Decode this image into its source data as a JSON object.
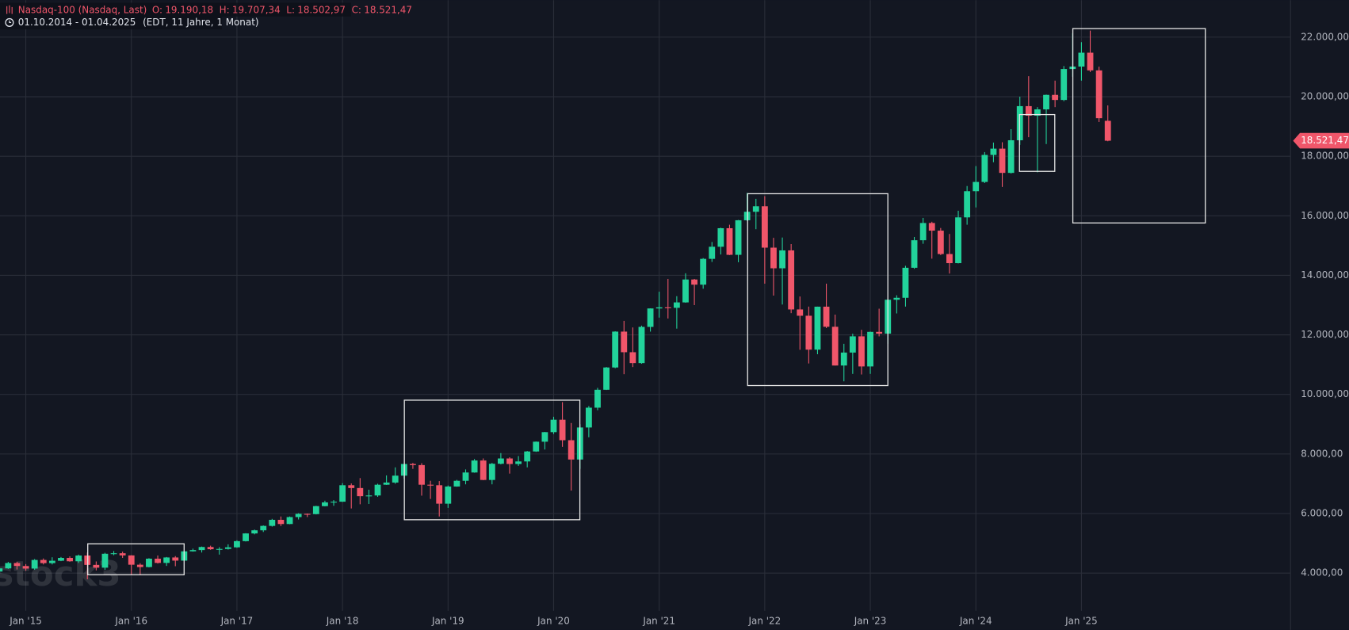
{
  "chart_data": {
    "type": "candlestick",
    "header": {
      "ohlc": [
        {
          "label": "O:",
          "value": "19.190,18"
        },
        {
          "label": "H:",
          "value": "19.707,34"
        },
        {
          "label": "L:",
          "value": "18.502,97"
        },
        {
          "label": "C:",
          "value": "18.521,47"
        }
      ],
      "range": "01.10.2014 - 01.04.2025",
      "meta": "(EDT, 11 Jahre, 1 Monat)"
    },
    "last_price_label": "18.521,47",
    "watermark": "stock3",
    "grid": true,
    "categories": [
      null,
      null,
      null,
      "Jan '15",
      null,
      null,
      null,
      null,
      null,
      null,
      null,
      null,
      null,
      null,
      null,
      "Jan '16",
      null,
      null,
      null,
      null,
      null,
      null,
      null,
      null,
      null,
      null,
      null,
      "Jan '17",
      null,
      null,
      null,
      null,
      null,
      null,
      null,
      null,
      null,
      null,
      null,
      "Jan '18",
      null,
      null,
      null,
      null,
      null,
      null,
      null,
      null,
      null,
      null,
      null,
      "Jan '19",
      null,
      null,
      null,
      null,
      null,
      null,
      null,
      null,
      null,
      null,
      null,
      "Jan '20",
      null,
      null,
      null,
      null,
      null,
      null,
      null,
      null,
      null,
      null,
      null,
      "Jan '21",
      null,
      null,
      null,
      null,
      null,
      null,
      null,
      null,
      null,
      null,
      null,
      "Jan '22",
      null,
      null,
      null,
      null,
      null,
      null,
      null,
      null,
      null,
      null,
      null,
      "Jan '23",
      null,
      null,
      null,
      null,
      null,
      null,
      null,
      null,
      null,
      null,
      null,
      "Jan '24",
      null,
      null,
      null,
      null,
      null,
      null,
      null,
      null,
      null,
      null,
      null,
      "Jan '25",
      null,
      null,
      null
    ],
    "ylim": [
      2729,
      23242
    ],
    "yticks": [
      {
        "value": 4000,
        "label": "4.000,00"
      },
      {
        "value": 6000,
        "label": "6.000,00"
      },
      {
        "value": 8000,
        "label": "8.000,00"
      },
      {
        "value": 10000,
        "label": "10.000,00"
      },
      {
        "value": 12000,
        "label": "12.000,00"
      },
      {
        "value": 14000,
        "label": "14.000,00"
      },
      {
        "value": 16000,
        "label": "16.000,00"
      },
      {
        "value": 18000,
        "label": "18.000,00"
      },
      {
        "value": 20000,
        "label": "20.000,00"
      },
      {
        "value": 22000,
        "label": "22.000,00"
      }
    ],
    "series": [
      {
        "name": "Nasdaq-100 (Nasdaq, Last)",
        "up_color": "#22d39b",
        "down_color": "#f0566a",
        "open": [
          4050,
          4158,
          4337,
          4236,
          4151,
          4440,
          4334,
          4414,
          4509,
          4396,
          4589,
          4274,
          4181,
          4648,
          4665,
          4593,
          4280,
          4202,
          4483,
          4341,
          4524,
          4418,
          4730,
          4772,
          4875,
          4801,
          4810,
          4864,
          5072,
          5331,
          5436,
          5584,
          5788,
          5647,
          5880,
          5988,
          5980,
          6248,
          6374,
          6397,
          6950,
          6856,
          6582,
          6606,
          6967,
          7040,
          7272,
          7664,
          7627,
          6967,
          6950,
          6330,
          6907,
          7099,
          7378,
          7781,
          7127,
          7671,
          7849,
          7663,
          7749,
          8084,
          8412,
          8733,
          9150,
          8462,
          7813,
          8890,
          9555,
          10157,
          10905,
          12110,
          11418,
          11053,
          12268,
          12888,
          12925,
          12909,
          13091,
          13860,
          13687,
          14554,
          14960,
          15583,
          14689,
          15850,
          16135,
          16320,
          14930,
          14237,
          14838,
          12855,
          12643,
          11504,
          12947,
          12272,
          10971,
          11406,
          11951,
          10940,
          12101,
          12042,
          13181,
          13246,
          14254,
          15179,
          15758,
          15501,
          14715,
          14410,
          15947,
          16826,
          17137,
          18044,
          18255,
          17441,
          18537,
          19683,
          19363,
          19575,
          20061,
          19890,
          20930,
          21012,
          21478,
          20884,
          19190.18
        ],
        "high": [
          4170,
          4375,
          4380,
          4300,
          4470,
          4490,
          4530,
          4540,
          4560,
          4620,
          4690,
          4390,
          4680,
          4740,
          4720,
          4600,
          4330,
          4500,
          4590,
          4540,
          4570,
          4740,
          4820,
          4890,
          4920,
          4870,
          4965,
          5100,
          5340,
          5460,
          5600,
          5820,
          5900,
          5900,
          6010,
          6000,
          6260,
          6430,
          6450,
          7020,
          7010,
          7190,
          6800,
          7000,
          7280,
          7550,
          7670,
          7700,
          7690,
          7100,
          7090,
          6940,
          7130,
          7480,
          7830,
          7850,
          7700,
          8030,
          7890,
          7930,
          8100,
          8420,
          8740,
          9250,
          9740,
          9040,
          9000,
          9610,
          10220,
          10920,
          12120,
          12470,
          12250,
          12310,
          12890,
          13450,
          13880,
          13300,
          14070,
          13880,
          14580,
          15120,
          15600,
          15700,
          15860,
          16770,
          16570,
          16660,
          15260,
          15270,
          15050,
          13290,
          12950,
          12950,
          13720,
          12680,
          11700,
          12040,
          12170,
          12110,
          12880,
          13200,
          13330,
          14320,
          15290,
          15930,
          15800,
          15590,
          15390,
          16170,
          17000,
          17670,
          18140,
          18460,
          18470,
          18910,
          20000,
          20690,
          19650,
          20070,
          20540,
          21030,
          22130,
          21830,
          22220,
          21010,
          19707.34
        ],
        "low": [
          3700,
          4140,
          4120,
          4080,
          4110,
          4290,
          4290,
          4400,
          4380,
          4340,
          3790,
          4090,
          4110,
          4600,
          4510,
          3950,
          3950,
          4190,
          4320,
          4240,
          4230,
          4400,
          4720,
          4690,
          4780,
          4620,
          4790,
          4850,
          5060,
          5300,
          5380,
          5560,
          5580,
          5640,
          5800,
          5880,
          5970,
          6240,
          6260,
          6390,
          6170,
          6310,
          6320,
          6560,
          6960,
          7000,
          7170,
          7500,
          6600,
          6490,
          5900,
          6190,
          6900,
          6980,
          7370,
          7120,
          6980,
          7650,
          7340,
          7600,
          7550,
          8070,
          8150,
          8670,
          8240,
          6770,
          7500,
          8560,
          9470,
          10150,
          10880,
          10680,
          10920,
          11030,
          12110,
          12580,
          12550,
          12210,
          13080,
          13000,
          13550,
          14450,
          14700,
          14680,
          14440,
          15830,
          15550,
          13720,
          13320,
          13020,
          12730,
          11500,
          11040,
          11350,
          12230,
          10970,
          10440,
          10690,
          10670,
          10690,
          11950,
          11700,
          12720,
          12950,
          14220,
          15060,
          14560,
          14680,
          14060,
          14400,
          15700,
          16280,
          17100,
          17800,
          16970,
          17420,
          18380,
          18640,
          17460,
          18410,
          19650,
          19850,
          20670,
          20540,
          20830,
          19150,
          18502.97
        ],
        "close": [
          4158,
          4337,
          4236,
          4151,
          4440,
          4334,
          4414,
          4509,
          4396,
          4589,
          4274,
          4181,
          4648,
          4665,
          4593,
          4280,
          4202,
          4483,
          4341,
          4524,
          4418,
          4730,
          4772,
          4875,
          4801,
          4810,
          4864,
          5072,
          5331,
          5436,
          5584,
          5788,
          5647,
          5880,
          5988,
          5980,
          6248,
          6374,
          6397,
          6950,
          6856,
          6582,
          6606,
          6967,
          7040,
          7272,
          7664,
          7627,
          6967,
          6950,
          6330,
          6907,
          7099,
          7378,
          7781,
          7127,
          7671,
          7849,
          7663,
          7749,
          8084,
          8412,
          8733,
          9150,
          8462,
          7813,
          8890,
          9555,
          10157,
          10905,
          12110,
          11418,
          11053,
          12268,
          12888,
          12925,
          12909,
          13091,
          13860,
          13687,
          14554,
          14960,
          15583,
          14689,
          15850,
          16135,
          16320,
          14930,
          14237,
          14838,
          12855,
          12643,
          11504,
          12947,
          12272,
          10971,
          11406,
          11951,
          10940,
          12101,
          12042,
          13181,
          13246,
          14254,
          15179,
          15758,
          15501,
          14715,
          14410,
          15947,
          16826,
          17137,
          18044,
          18255,
          17441,
          18537,
          19683,
          19363,
          19575,
          20061,
          19890,
          20930,
          21012,
          21478,
          20884,
          19278,
          18521.47
        ]
      }
    ]
  }
}
